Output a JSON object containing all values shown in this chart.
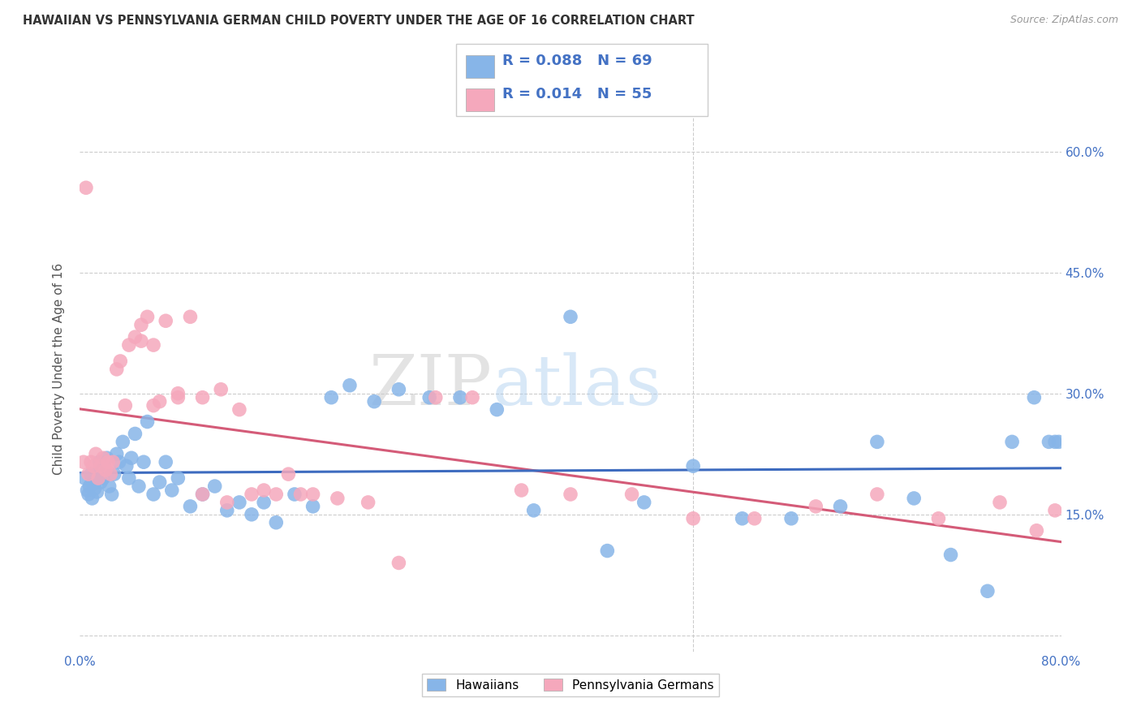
{
  "title": "HAWAIIAN VS PENNSYLVANIA GERMAN CHILD POVERTY UNDER THE AGE OF 16 CORRELATION CHART",
  "source": "Source: ZipAtlas.com",
  "ylabel": "Child Poverty Under the Age of 16",
  "xlim": [
    0.0,
    0.8
  ],
  "ylim": [
    -0.02,
    0.68
  ],
  "x_ticks": [
    0.0,
    0.1,
    0.2,
    0.3,
    0.4,
    0.5,
    0.6,
    0.7,
    0.8
  ],
  "x_tick_labels": [
    "0.0%",
    "",
    "",
    "",
    "",
    "",
    "",
    "",
    "80.0%"
  ],
  "y_ticks": [
    0.0,
    0.15,
    0.3,
    0.45,
    0.6
  ],
  "y_tick_labels": [
    "",
    "15.0%",
    "30.0%",
    "45.0%",
    "60.0%"
  ],
  "hawaiian_color": "#87b5e8",
  "pennsylvania_color": "#f5a8bc",
  "line_color_haw": "#3d6bbf",
  "line_color_pa": "#d45b78",
  "hawaiian_x": [
    0.004,
    0.006,
    0.007,
    0.008,
    0.009,
    0.01,
    0.011,
    0.012,
    0.013,
    0.014,
    0.015,
    0.016,
    0.017,
    0.018,
    0.019,
    0.02,
    0.022,
    0.024,
    0.026,
    0.028,
    0.03,
    0.032,
    0.035,
    0.038,
    0.04,
    0.042,
    0.045,
    0.048,
    0.052,
    0.055,
    0.06,
    0.065,
    0.07,
    0.075,
    0.08,
    0.09,
    0.1,
    0.11,
    0.12,
    0.13,
    0.14,
    0.15,
    0.16,
    0.175,
    0.19,
    0.205,
    0.22,
    0.24,
    0.26,
    0.285,
    0.31,
    0.34,
    0.37,
    0.4,
    0.43,
    0.46,
    0.5,
    0.54,
    0.58,
    0.62,
    0.65,
    0.68,
    0.71,
    0.74,
    0.76,
    0.778,
    0.79,
    0.795,
    0.798
  ],
  "hawaiian_y": [
    0.195,
    0.18,
    0.175,
    0.185,
    0.2,
    0.17,
    0.188,
    0.182,
    0.192,
    0.178,
    0.198,
    0.215,
    0.19,
    0.205,
    0.195,
    0.21,
    0.22,
    0.185,
    0.175,
    0.2,
    0.225,
    0.215,
    0.24,
    0.21,
    0.195,
    0.22,
    0.25,
    0.185,
    0.215,
    0.265,
    0.175,
    0.19,
    0.215,
    0.18,
    0.195,
    0.16,
    0.175,
    0.185,
    0.155,
    0.165,
    0.15,
    0.165,
    0.14,
    0.175,
    0.16,
    0.295,
    0.31,
    0.29,
    0.305,
    0.295,
    0.295,
    0.28,
    0.155,
    0.395,
    0.105,
    0.165,
    0.21,
    0.145,
    0.145,
    0.16,
    0.24,
    0.17,
    0.1,
    0.055,
    0.24,
    0.295,
    0.24,
    0.24,
    0.24
  ],
  "pennsylvania_x": [
    0.003,
    0.005,
    0.007,
    0.009,
    0.011,
    0.013,
    0.015,
    0.017,
    0.019,
    0.021,
    0.023,
    0.025,
    0.027,
    0.03,
    0.033,
    0.037,
    0.04,
    0.045,
    0.05,
    0.055,
    0.06,
    0.065,
    0.07,
    0.08,
    0.09,
    0.1,
    0.115,
    0.13,
    0.15,
    0.17,
    0.19,
    0.21,
    0.235,
    0.26,
    0.29,
    0.32,
    0.36,
    0.4,
    0.45,
    0.5,
    0.55,
    0.6,
    0.65,
    0.7,
    0.75,
    0.78,
    0.795,
    0.05,
    0.06,
    0.08,
    0.1,
    0.12,
    0.14,
    0.16,
    0.18
  ],
  "pennsylvania_y": [
    0.215,
    0.555,
    0.2,
    0.215,
    0.21,
    0.225,
    0.195,
    0.21,
    0.22,
    0.205,
    0.215,
    0.2,
    0.215,
    0.33,
    0.34,
    0.285,
    0.36,
    0.37,
    0.365,
    0.395,
    0.36,
    0.29,
    0.39,
    0.295,
    0.395,
    0.295,
    0.305,
    0.28,
    0.18,
    0.2,
    0.175,
    0.17,
    0.165,
    0.09,
    0.295,
    0.295,
    0.18,
    0.175,
    0.175,
    0.145,
    0.145,
    0.16,
    0.175,
    0.145,
    0.165,
    0.13,
    0.155,
    0.385,
    0.285,
    0.3,
    0.175,
    0.165,
    0.175,
    0.175,
    0.175
  ]
}
